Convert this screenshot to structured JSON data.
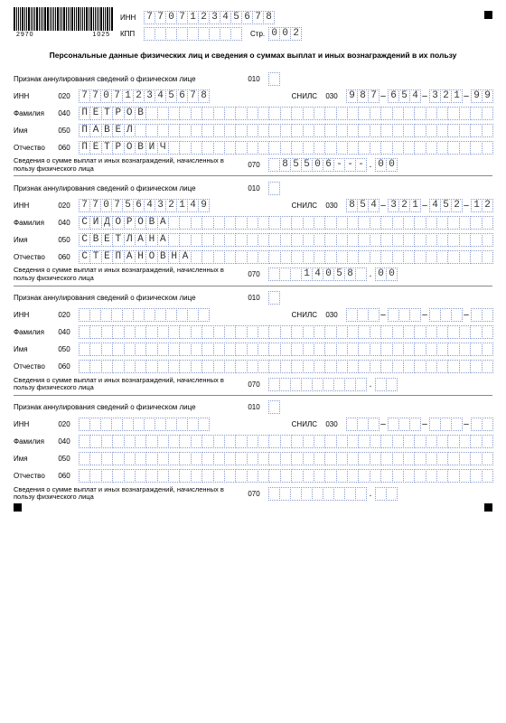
{
  "cell_border_color": "#8899cc",
  "text_color": "#333333",
  "barcode": {
    "pattern": [
      2,
      1,
      1,
      1,
      2,
      1,
      1,
      2,
      1,
      1,
      1,
      2,
      1,
      1,
      1,
      2,
      2,
      1,
      1,
      1,
      1,
      2,
      1,
      1,
      2,
      1,
      1,
      1,
      2,
      1,
      1,
      2,
      1,
      1,
      1,
      2,
      1,
      2,
      1,
      1,
      1,
      1,
      2,
      1,
      1,
      2,
      1,
      2
    ],
    "gaps": [
      1,
      1,
      1,
      1,
      1,
      1,
      1,
      1,
      1,
      1,
      1,
      1,
      1,
      1,
      1,
      1,
      1,
      1,
      1,
      1,
      1,
      1,
      1,
      1,
      1,
      1,
      1,
      1,
      1,
      1,
      1,
      1,
      1,
      1,
      1,
      1,
      1,
      1,
      1,
      1,
      1,
      1,
      1,
      1,
      1,
      1,
      1,
      0
    ],
    "num_left": "2970",
    "num_right": "1025"
  },
  "header": {
    "inn_label": "ИНН",
    "inn": "770712345678",
    "kpp_label": "КПП",
    "kpp": "",
    "page_label": "Стр.",
    "page": "002"
  },
  "title": "Персональные данные физических лиц и сведения о суммах выплат и иных вознаграждений в их пользу",
  "labels": {
    "cancel": "Признак аннулирования сведений о физическом лице",
    "inn": "ИНН",
    "snils": "СНИЛС",
    "surname": "Фамилия",
    "name": "Имя",
    "patronymic": "Отчество",
    "amount": "Сведения о сумме выплат и иных вознаграждений, начисленных в пользу физического лица"
  },
  "codes": {
    "cancel": "010",
    "inn": "020",
    "snils": "030",
    "surname": "040",
    "name": "050",
    "patronymic": "060",
    "amount": "070"
  },
  "persons": [
    {
      "cancel": "",
      "inn": "770712345678",
      "snils": [
        "987",
        "654",
        "321",
        "99"
      ],
      "surname": "ПЕТРОВ",
      "name": "ПАВЕЛ",
      "patronymic": "ПЕТРОВИЧ",
      "amount_int": " 85506---",
      "amount_dec": "00"
    },
    {
      "cancel": "",
      "inn": "770756432149",
      "snils": [
        "854",
        "321",
        "452",
        "12"
      ],
      "surname": "СИДОРОВА",
      "name": "СВЕТЛАНА",
      "patronymic": "СТЕПАНОВНА",
      "amount_int": "   14058 ",
      "amount_dec": "00"
    },
    {
      "cancel": "",
      "inn": "",
      "snils": [
        "",
        "",
        "",
        ""
      ],
      "surname": "",
      "name": "",
      "patronymic": "",
      "amount_int": "",
      "amount_dec": ""
    },
    {
      "cancel": "",
      "inn": "",
      "snils": [
        "",
        "",
        "",
        ""
      ],
      "surname": "",
      "name": "",
      "patronymic": "",
      "amount_int": "",
      "amount_dec": ""
    }
  ],
  "name_cell_count": 37,
  "inn_cell_count": 12,
  "kpp_cell_count": 9,
  "page_cell_count": 3,
  "snils_groups": [
    3,
    3,
    3,
    2
  ],
  "amount_int_cells": 9,
  "amount_dec_cells": 2
}
